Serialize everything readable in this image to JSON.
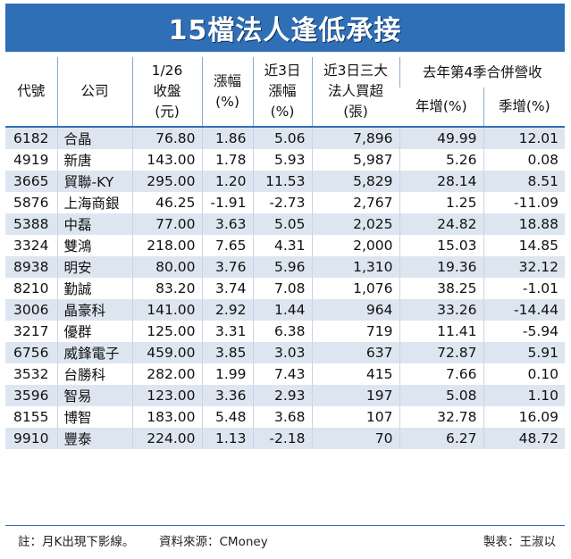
{
  "title": "15檔法人逢低承接",
  "headers": {
    "code": "代號",
    "company": "公司",
    "close": [
      "1/26",
      "收盤",
      "(元)"
    ],
    "change": [
      "漲幅",
      "(%)"
    ],
    "change3": [
      "近3日",
      "漲幅",
      "(%)"
    ],
    "net_buy": [
      "近3日三大",
      "法人買超",
      "(張)"
    ],
    "revenue_group": "去年第4季合併營收",
    "yoy": "年增(%)",
    "qoq": "季增(%)"
  },
  "rows": [
    {
      "code": "6182",
      "company": "合晶",
      "close": "76.80",
      "change": "1.86",
      "change3": "5.06",
      "net_buy": "7,896",
      "yoy": "49.99",
      "qoq": "12.01"
    },
    {
      "code": "4919",
      "company": "新唐",
      "close": "143.00",
      "change": "1.78",
      "change3": "5.93",
      "net_buy": "5,987",
      "yoy": "5.26",
      "qoq": "0.08"
    },
    {
      "code": "3665",
      "company": "貿聯-KY",
      "close": "295.00",
      "change": "1.20",
      "change3": "11.53",
      "net_buy": "5,829",
      "yoy": "28.14",
      "qoq": "8.51"
    },
    {
      "code": "5876",
      "company": "上海商銀",
      "close": "46.25",
      "change": "-1.91",
      "change3": "-2.73",
      "net_buy": "2,767",
      "yoy": "1.25",
      "qoq": "-11.09"
    },
    {
      "code": "5388",
      "company": "中磊",
      "close": "77.00",
      "change": "3.63",
      "change3": "5.05",
      "net_buy": "2,025",
      "yoy": "24.82",
      "qoq": "18.88"
    },
    {
      "code": "3324",
      "company": "雙鴻",
      "close": "218.00",
      "change": "7.65",
      "change3": "4.31",
      "net_buy": "2,000",
      "yoy": "15.03",
      "qoq": "14.85"
    },
    {
      "code": "8938",
      "company": "明安",
      "close": "80.00",
      "change": "3.76",
      "change3": "5.96",
      "net_buy": "1,310",
      "yoy": "19.36",
      "qoq": "32.12"
    },
    {
      "code": "8210",
      "company": "勤誠",
      "close": "83.20",
      "change": "3.74",
      "change3": "7.08",
      "net_buy": "1,076",
      "yoy": "38.25",
      "qoq": "-1.01"
    },
    {
      "code": "3006",
      "company": "晶豪科",
      "close": "141.00",
      "change": "2.92",
      "change3": "1.44",
      "net_buy": "964",
      "yoy": "33.26",
      "qoq": "-14.44"
    },
    {
      "code": "3217",
      "company": "優群",
      "close": "125.00",
      "change": "3.31",
      "change3": "6.38",
      "net_buy": "719",
      "yoy": "11.41",
      "qoq": "-5.94"
    },
    {
      "code": "6756",
      "company": "威鋒電子",
      "close": "459.00",
      "change": "3.85",
      "change3": "3.03",
      "net_buy": "637",
      "yoy": "72.87",
      "qoq": "5.91"
    },
    {
      "code": "3532",
      "company": "台勝科",
      "close": "282.00",
      "change": "1.99",
      "change3": "7.43",
      "net_buy": "415",
      "yoy": "7.66",
      "qoq": "0.10"
    },
    {
      "code": "3596",
      "company": "智易",
      "close": "123.00",
      "change": "3.36",
      "change3": "2.93",
      "net_buy": "197",
      "yoy": "5.08",
      "qoq": "1.10"
    },
    {
      "code": "8155",
      "company": "博智",
      "close": "183.00",
      "change": "5.48",
      "change3": "3.68",
      "net_buy": "107",
      "yoy": "32.78",
      "qoq": "16.09"
    },
    {
      "code": "9910",
      "company": "豐泰",
      "close": "224.00",
      "change": "1.13",
      "change3": "-2.18",
      "net_buy": "70",
      "yoy": "6.27",
      "qoq": "48.72"
    }
  ],
  "footer": {
    "note": "註：月K出現下影線。",
    "source": "資料來源：CMoney",
    "credit": "製表：王淑以"
  },
  "colors": {
    "title_bg": "#2f6fb6",
    "stripe": "#dde6f0"
  }
}
